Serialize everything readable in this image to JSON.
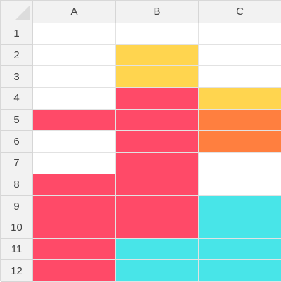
{
  "columns": [
    "A",
    "B",
    "C"
  ],
  "rows": [
    "1",
    "2",
    "3",
    "4",
    "5",
    "6",
    "7",
    "8",
    "9",
    "10",
    "11",
    "12"
  ],
  "palette": {
    "empty": "#ffffff",
    "yellow": "#ffd54f",
    "red": "#ff4a68",
    "orange": "#ff7f3f",
    "cyan": "#48e5e8"
  },
  "cell_fills": [
    [
      "empty",
      "empty",
      "empty"
    ],
    [
      "empty",
      "yellow",
      "empty"
    ],
    [
      "empty",
      "yellow",
      "empty"
    ],
    [
      "empty",
      "red",
      "yellow"
    ],
    [
      "red",
      "red",
      "orange"
    ],
    [
      "empty",
      "red",
      "orange"
    ],
    [
      "empty",
      "red",
      "empty"
    ],
    [
      "red",
      "red",
      "empty"
    ],
    [
      "red",
      "red",
      "cyan"
    ],
    [
      "red",
      "red",
      "cyan"
    ],
    [
      "red",
      "cyan",
      "cyan"
    ],
    [
      "red",
      "cyan",
      "cyan"
    ]
  ]
}
